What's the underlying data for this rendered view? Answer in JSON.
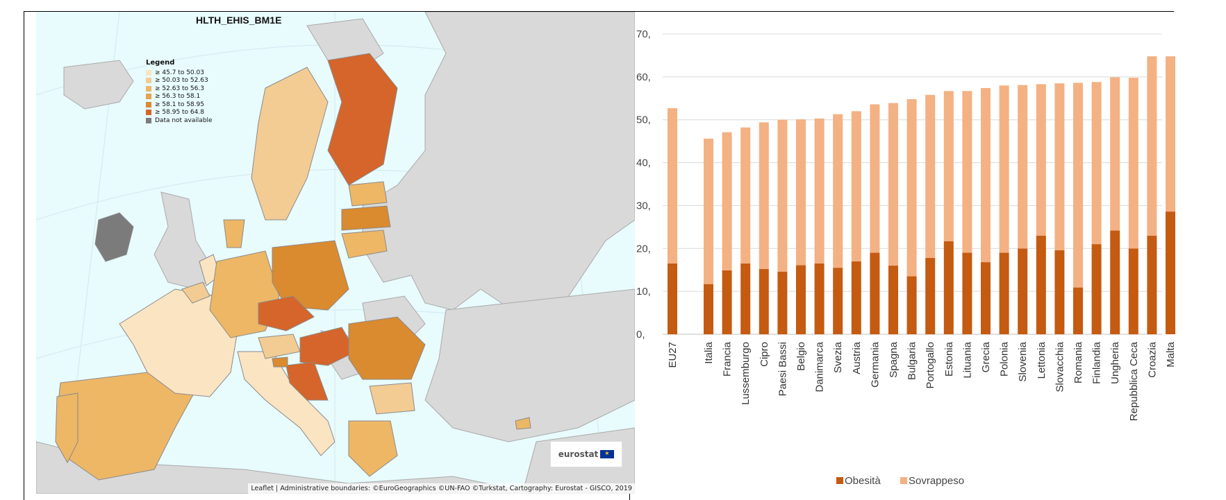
{
  "map": {
    "title": "HLTH_EHIS_BM1E",
    "legend_title": "Legend",
    "legend": [
      {
        "label": "≥ 45.7 to 50.03",
        "color": "#fbe4c2"
      },
      {
        "label": "≥ 50.03 to 52.63",
        "color": "#f3cc94"
      },
      {
        "label": "≥ 52.63 to 56.3",
        "color": "#edb766"
      },
      {
        "label": "≥ 56.3 to 58.1",
        "color": "#e4a34d"
      },
      {
        "label": "≥ 58.1 to 58.95",
        "color": "#da8a2f"
      },
      {
        "label": "≥ 58.95 to 64.8",
        "color": "#d5652a"
      },
      {
        "label": "Data not available",
        "color": "#7b7b7b"
      }
    ],
    "logo": "eurostat",
    "attribution": "Leaflet | Administrative boundaries: ©EuroGeographics ©UN-FAO ©Turkstat, Cartography: Eurostat - GISCO, 2019",
    "colors": {
      "sea": "#e8fbfd",
      "non_eu_land": "#d9d9d9",
      "border": "#8a8a8a"
    }
  },
  "chart_data": {
    "type": "bar",
    "stacked": true,
    "categories": [
      "EU27",
      "Italia",
      "Francia",
      "Lussemburgo",
      "Cipro",
      "Paesi Bassi",
      "Belgio",
      "Danimarca",
      "Svezia",
      "Austria",
      "Germania",
      "Spagna",
      "Bulgaria",
      "Portogallo",
      "Estonia",
      "Lituania",
      "Grecia",
      "Polonia",
      "Slovenia",
      "Lettonia",
      "Slovacchia",
      "Romania",
      "Finlandia",
      "Ungheria",
      "Repubblica Ceca",
      "Croazia",
      "Malta"
    ],
    "series": [
      {
        "name": "Obesità",
        "color": "#c55a11",
        "values": [
          16.5,
          11.7,
          14.9,
          16.5,
          15.2,
          14.6,
          16.1,
          16.5,
          15.5,
          17.0,
          19.0,
          16.0,
          13.5,
          17.8,
          21.7,
          19.0,
          16.8,
          19.0,
          20.0,
          23.0,
          19.6,
          10.9,
          21.0,
          24.2,
          20.0,
          23.0,
          28.6
        ]
      },
      {
        "name": "Sovrappeso",
        "color": "#f4b183",
        "values": [
          36.2,
          33.9,
          32.2,
          31.7,
          34.2,
          35.4,
          34.0,
          33.8,
          35.8,
          35.0,
          34.6,
          37.9,
          41.3,
          38.0,
          35.0,
          37.7,
          40.6,
          39.0,
          38.1,
          35.3,
          38.9,
          47.7,
          37.8,
          35.7,
          39.8,
          41.8,
          36.2
        ]
      }
    ],
    "y_ticks": [
      "0,",
      "10,",
      "20,",
      "30,",
      "40,",
      "50,",
      "60,",
      "70,"
    ],
    "ylim": [
      0,
      70
    ],
    "grid": true,
    "legend_position": "bottom"
  }
}
